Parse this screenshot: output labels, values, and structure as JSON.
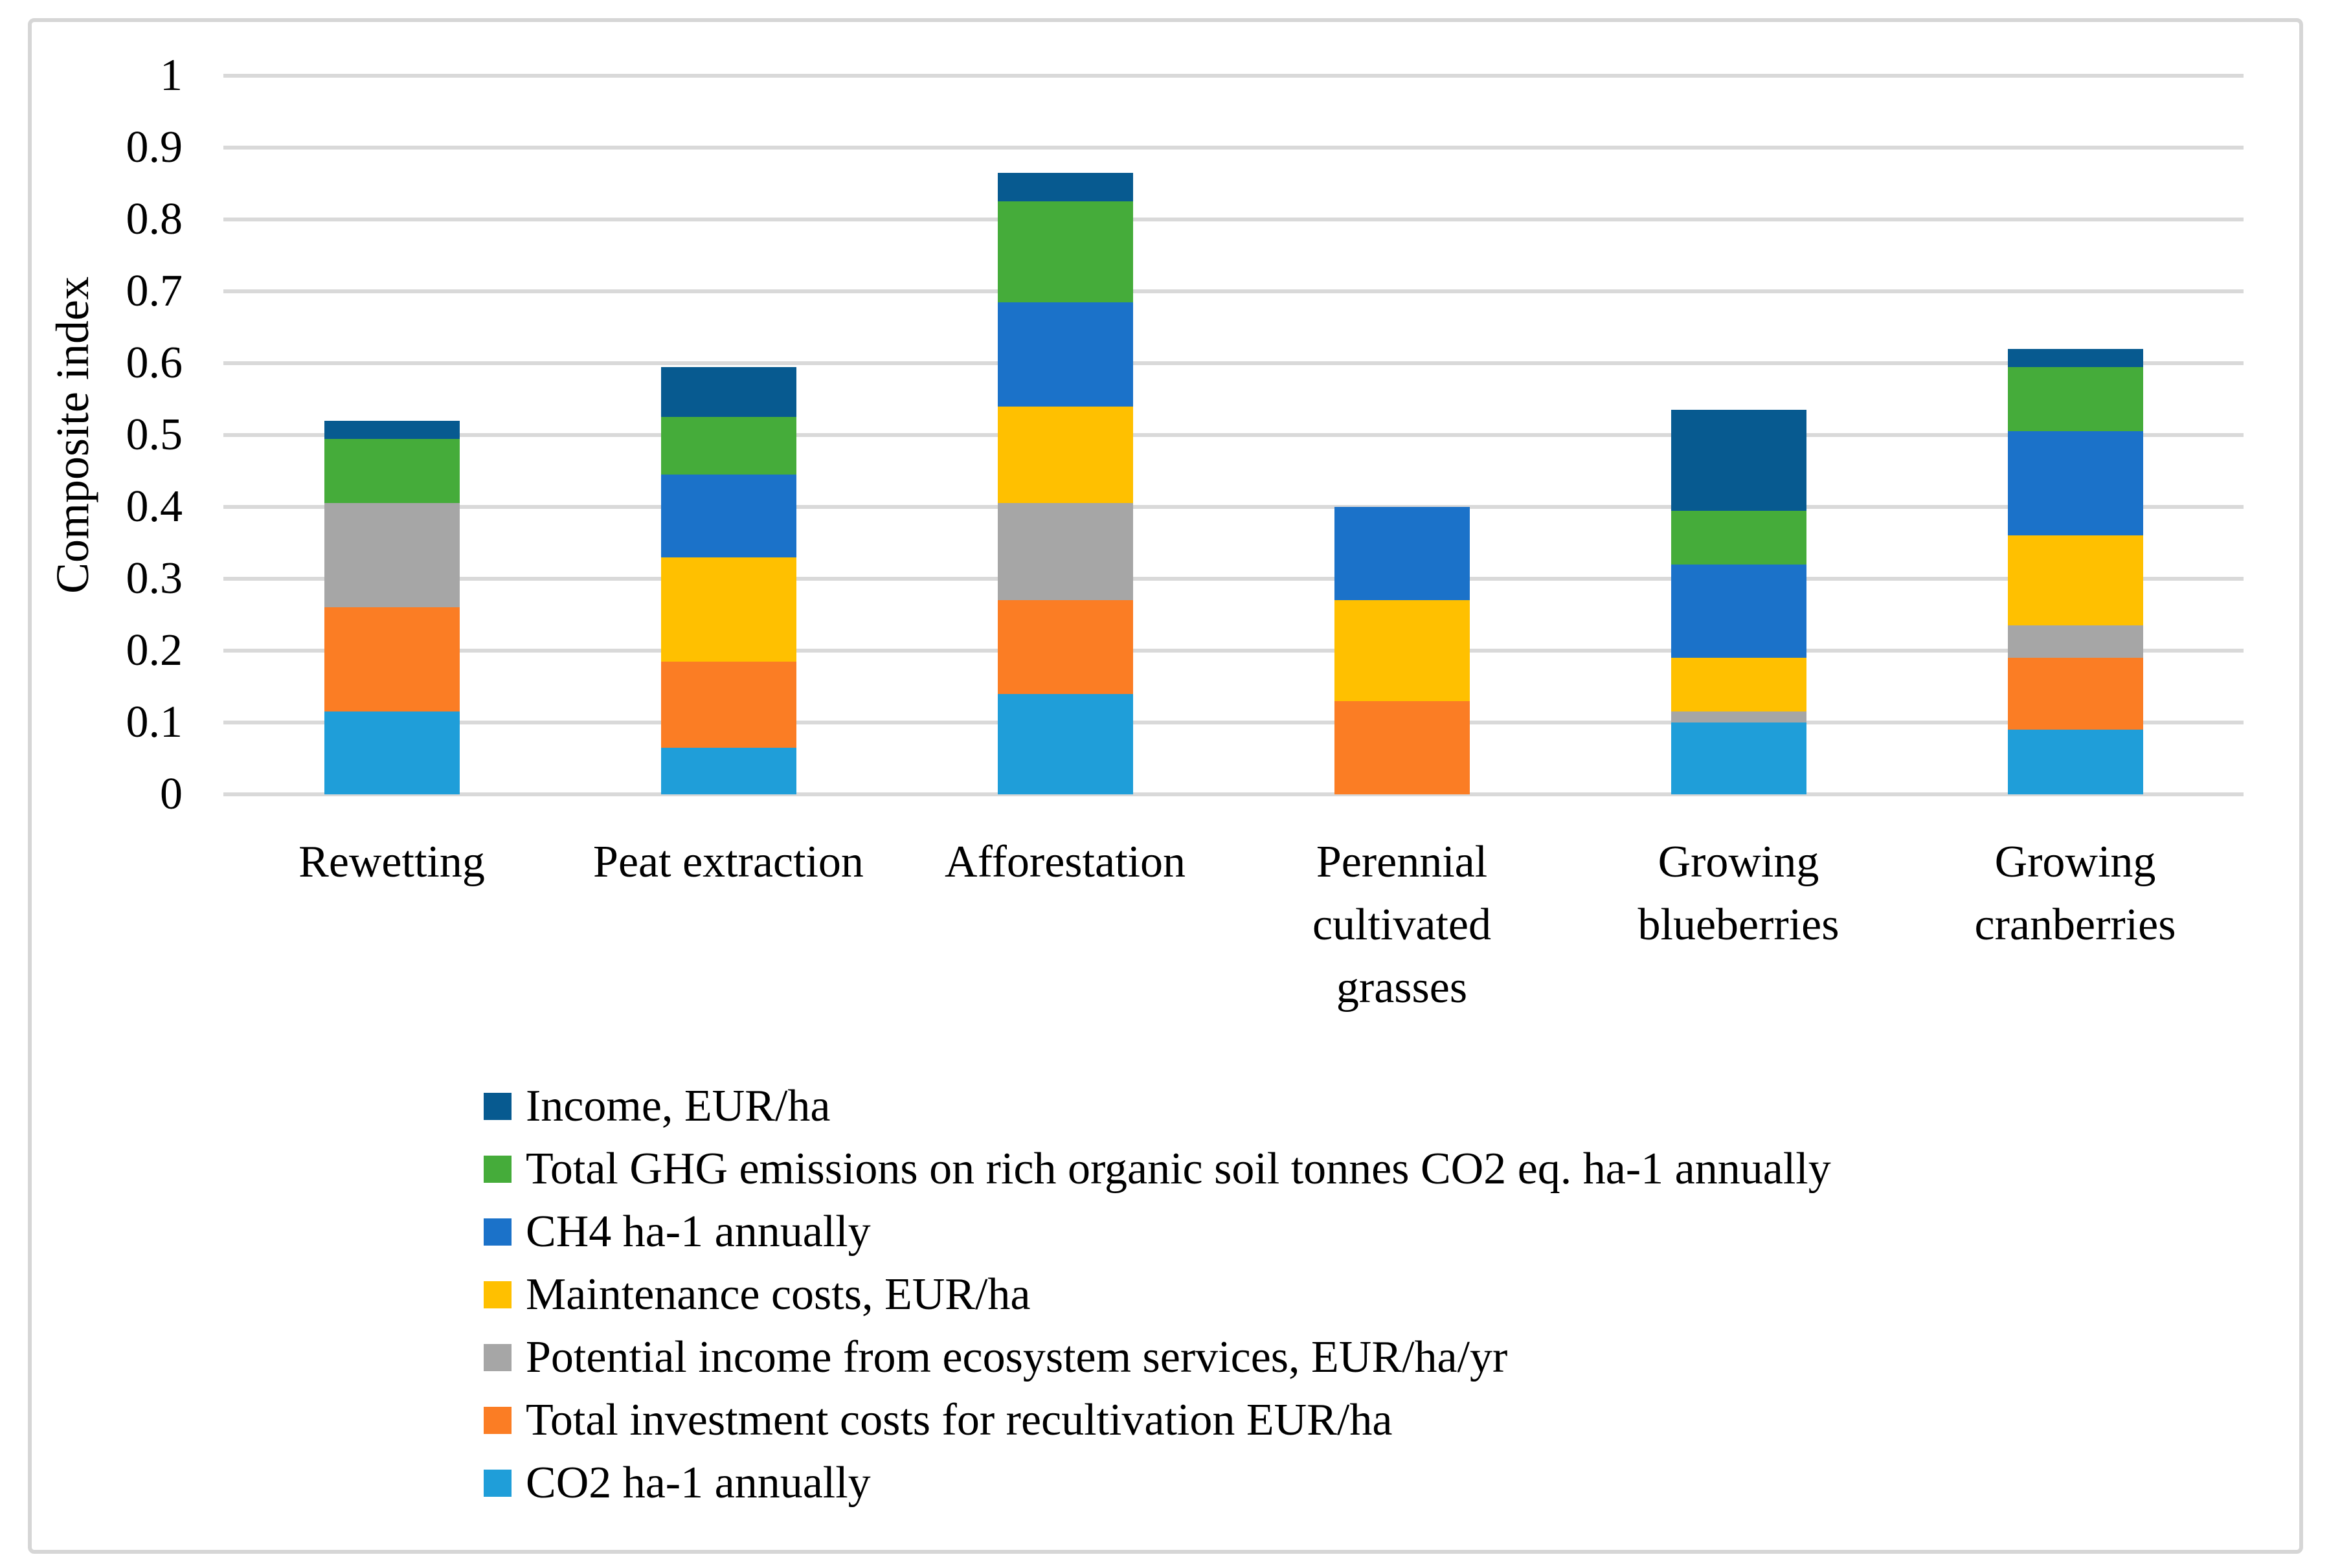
{
  "chart_data": {
    "type": "bar",
    "stacked": true,
    "title": "",
    "xlabel": "",
    "ylabel": "Composite index",
    "ylim": [
      0,
      1
    ],
    "y_ticks": [
      "0",
      "0.1",
      "0.2",
      "0.3",
      "0.4",
      "0.5",
      "0.6",
      "0.7",
      "0.8",
      "0.9",
      "1"
    ],
    "grid": "horizontal",
    "grid_color": "#D9D9D9",
    "frame_color": "#D6D6D6",
    "legend_position": "bottom-left",
    "categories": [
      "Rewetting",
      "Peat extraction",
      "Afforestation",
      "Perennial cultivated grasses",
      "Growing blueberries",
      "Growing cranberries"
    ],
    "category_label_lines": [
      [
        "Rewetting"
      ],
      [
        "Peat extraction"
      ],
      [
        "Afforestation"
      ],
      [
        "Perennial",
        "cultivated",
        "grasses"
      ],
      [
        "Growing",
        "blueberries"
      ],
      [
        "Growing",
        "cranberries"
      ]
    ],
    "series": [
      {
        "name": "CO2 ha-1 annually",
        "color": "#1F9ED9",
        "values": [
          0.115,
          0.065,
          0.14,
          0,
          0.1,
          0.09
        ]
      },
      {
        "name": "Total investment costs for recultivation EUR/ha",
        "color": "#FB7D24",
        "values": [
          0.145,
          0.12,
          0.13,
          0.13,
          0,
          0.1
        ]
      },
      {
        "name": "Potential income from ecosystem services, EUR/ha/yr",
        "color": "#A6A6A6",
        "values": [
          0.145,
          0,
          0.135,
          0,
          0.015,
          0.045
        ]
      },
      {
        "name": "Maintenance costs, EUR/ha",
        "color": "#FFC000",
        "values": [
          0,
          0.145,
          0.135,
          0.14,
          0.075,
          0.125
        ]
      },
      {
        "name": "CH4 ha-1 annually",
        "color": "#1B72C9",
        "values": [
          0,
          0.115,
          0.145,
          0.13,
          0.13,
          0.145
        ]
      },
      {
        "name": "Total GHG emissions on rich organic soil tonnes CO2 eq. ha-1 annually",
        "color": "#45AC3A",
        "values": [
          0.09,
          0.08,
          0.14,
          0,
          0.075,
          0.09
        ]
      },
      {
        "name": "Income, EUR/ha",
        "color": "#075A90",
        "values": [
          0.025,
          0.07,
          0.04,
          0,
          0.14,
          0.025
        ]
      }
    ],
    "stack_totals": [
      0.52,
      0.595,
      0.865,
      0.4,
      0.535,
      0.62
    ],
    "legend_order_top_to_bottom": [
      "Income, EUR/ha",
      "Total GHG emissions on rich organic soil tonnes CO2 eq. ha-1 annually",
      "CH4 ha-1 annually",
      "Maintenance costs, EUR/ha",
      "Potential income from ecosystem services, EUR/ha/yr",
      "Total investment costs for recultivation EUR/ha",
      "CO2 ha-1 annually"
    ]
  }
}
